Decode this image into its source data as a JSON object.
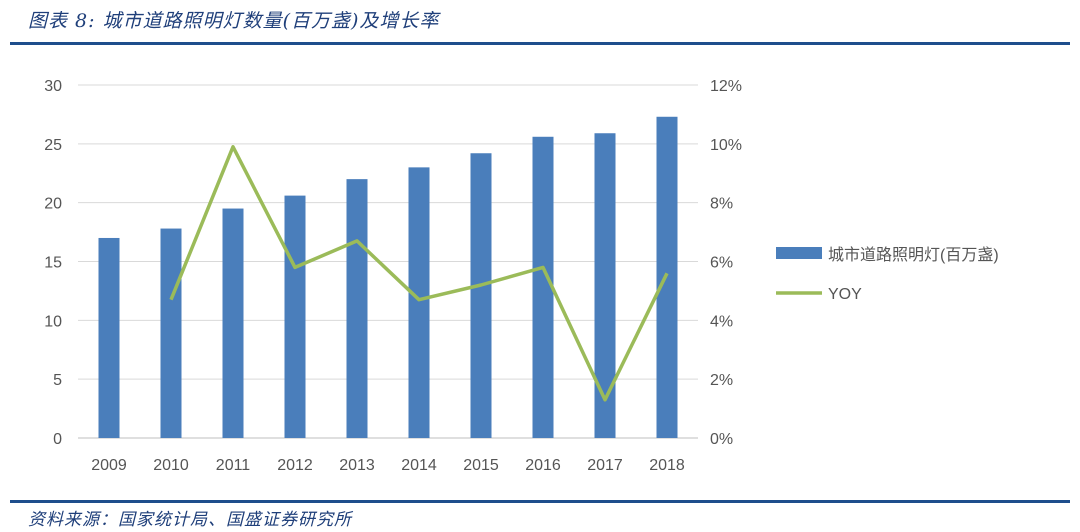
{
  "title": "图表 8:  城市道路照明灯数量(百万盏)及增长率",
  "source": "资料来源：国家统计局、国盛证券研究所",
  "colors": {
    "bar": "#4a7ebb",
    "line": "#9bbb59",
    "rule": "#1e4e8c",
    "grid": "#d9d9d9"
  },
  "chart_data": {
    "type": "bar+line",
    "categories": [
      "2009",
      "2010",
      "2011",
      "2012",
      "2013",
      "2014",
      "2015",
      "2016",
      "2017",
      "2018"
    ],
    "series": [
      {
        "name": "城市道路照明灯(百万盏)",
        "type": "bar",
        "axis": "left",
        "values": [
          17.0,
          17.8,
          19.5,
          20.6,
          22.0,
          23.0,
          24.2,
          25.6,
          25.9,
          27.3
        ]
      },
      {
        "name": "YOY",
        "type": "line",
        "axis": "right",
        "values": [
          null,
          0.047,
          0.099,
          0.058,
          0.067,
          0.047,
          0.052,
          0.058,
          0.013,
          0.056
        ]
      }
    ],
    "left_axis": {
      "ylim": [
        0,
        30
      ],
      "ticks": [
        "0",
        "5",
        "10",
        "15",
        "20",
        "25",
        "30"
      ]
    },
    "right_axis": {
      "ylim": [
        0,
        0.12
      ],
      "ticks": [
        "0%",
        "2%",
        "4%",
        "6%",
        "8%",
        "10%",
        "12%"
      ]
    },
    "grid": true,
    "legend": "right"
  }
}
